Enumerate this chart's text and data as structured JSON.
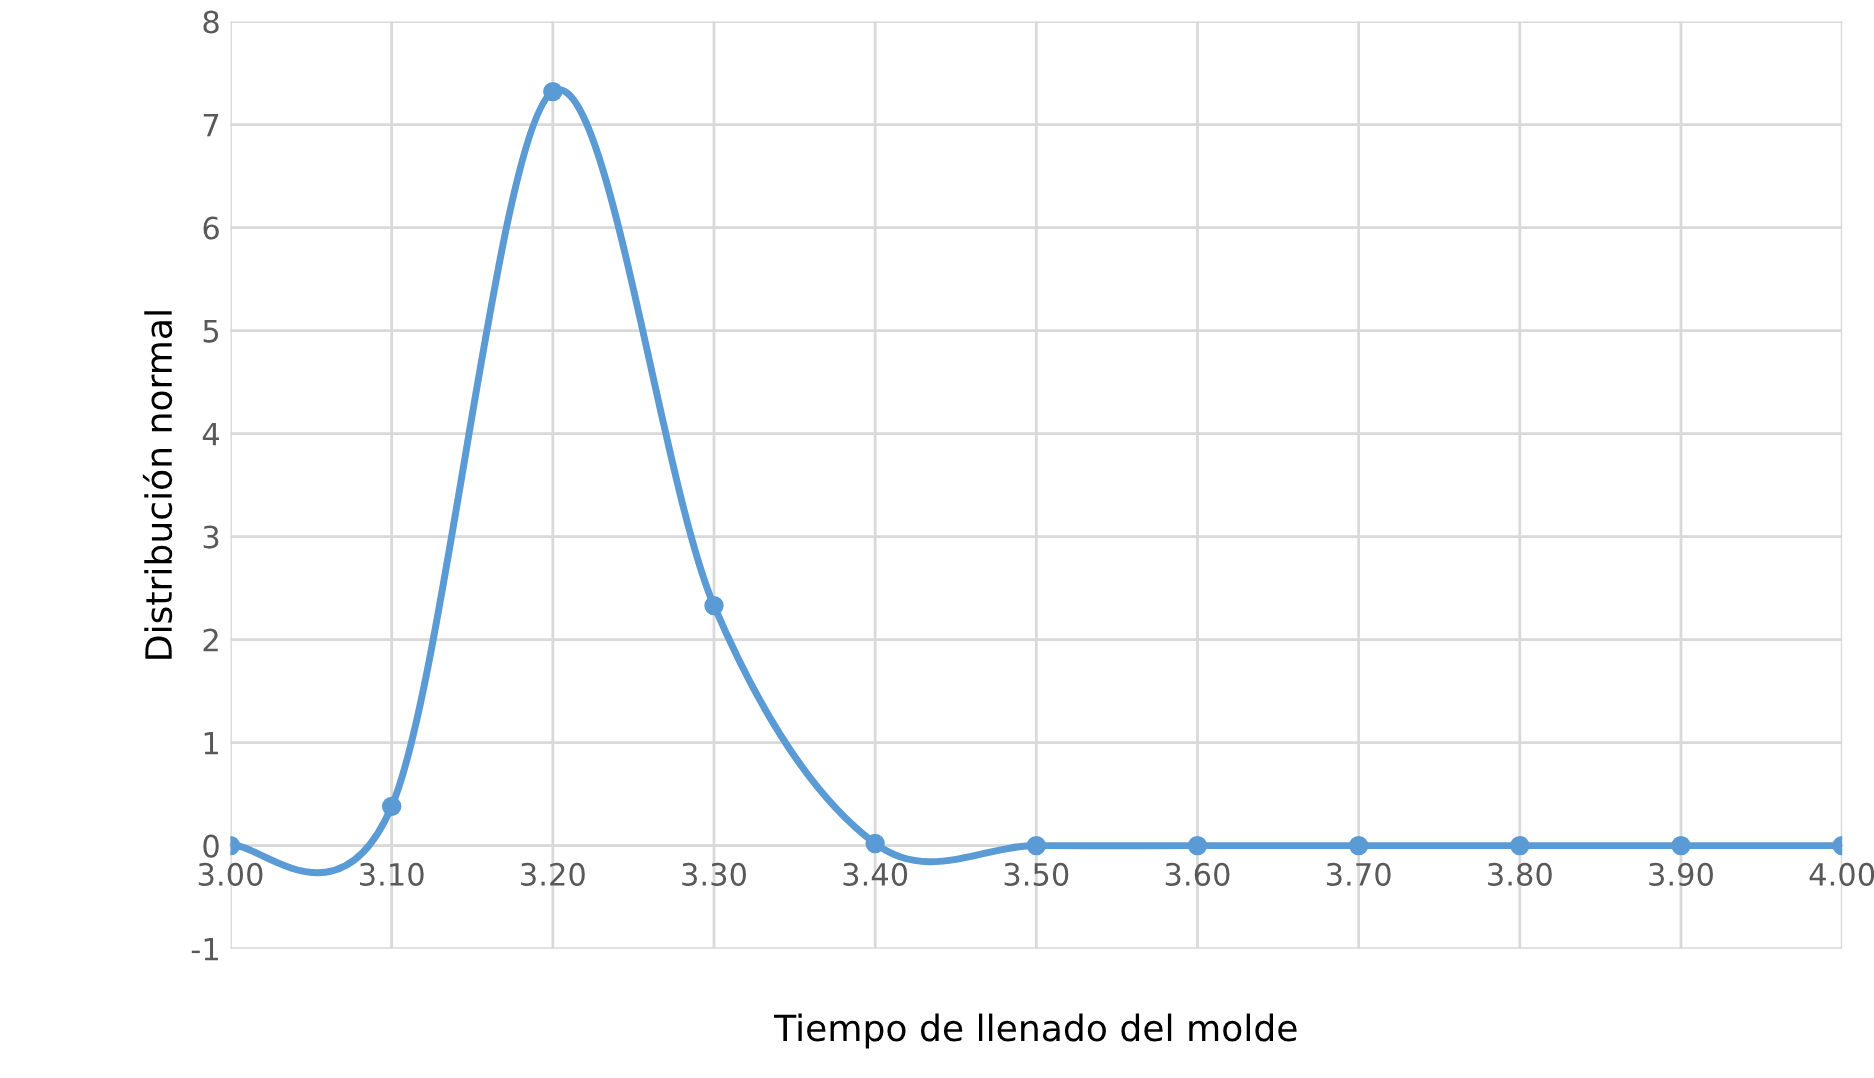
{
  "chart_data": {
    "type": "line",
    "xlabel": "Tiempo de llenado del molde",
    "ylabel": "Distribución normal",
    "x": [
      3.0,
      3.1,
      3.2,
      3.3,
      3.4,
      3.5,
      3.6,
      3.7,
      3.8,
      3.9,
      4.0
    ],
    "series": [
      {
        "color": "#5b9bd5",
        "values": [
          0,
          0.38,
          7.32,
          2.33,
          0.02,
          0,
          0,
          0,
          0,
          0,
          0
        ]
      }
    ],
    "xlim": [
      3.0,
      4.0
    ],
    "ylim": [
      -1,
      8
    ],
    "xticks": [
      {
        "value": 3.0,
        "label": "3.00"
      },
      {
        "value": 3.1,
        "label": "3.10"
      },
      {
        "value": 3.2,
        "label": "3.20"
      },
      {
        "value": 3.3,
        "label": "3.30"
      },
      {
        "value": 3.4,
        "label": "3.40"
      },
      {
        "value": 3.5,
        "label": "3.50"
      },
      {
        "value": 3.6,
        "label": "3.60"
      },
      {
        "value": 3.7,
        "label": "3.70"
      },
      {
        "value": 3.8,
        "label": "3.80"
      },
      {
        "value": 3.9,
        "label": "3.90"
      },
      {
        "value": 4.0,
        "label": "4.00"
      }
    ],
    "yticks": [
      -1,
      0,
      1,
      2,
      3,
      4,
      5,
      6,
      7,
      8
    ],
    "grid": true,
    "marker": "circle",
    "line_style": "solid",
    "legend": false
  }
}
